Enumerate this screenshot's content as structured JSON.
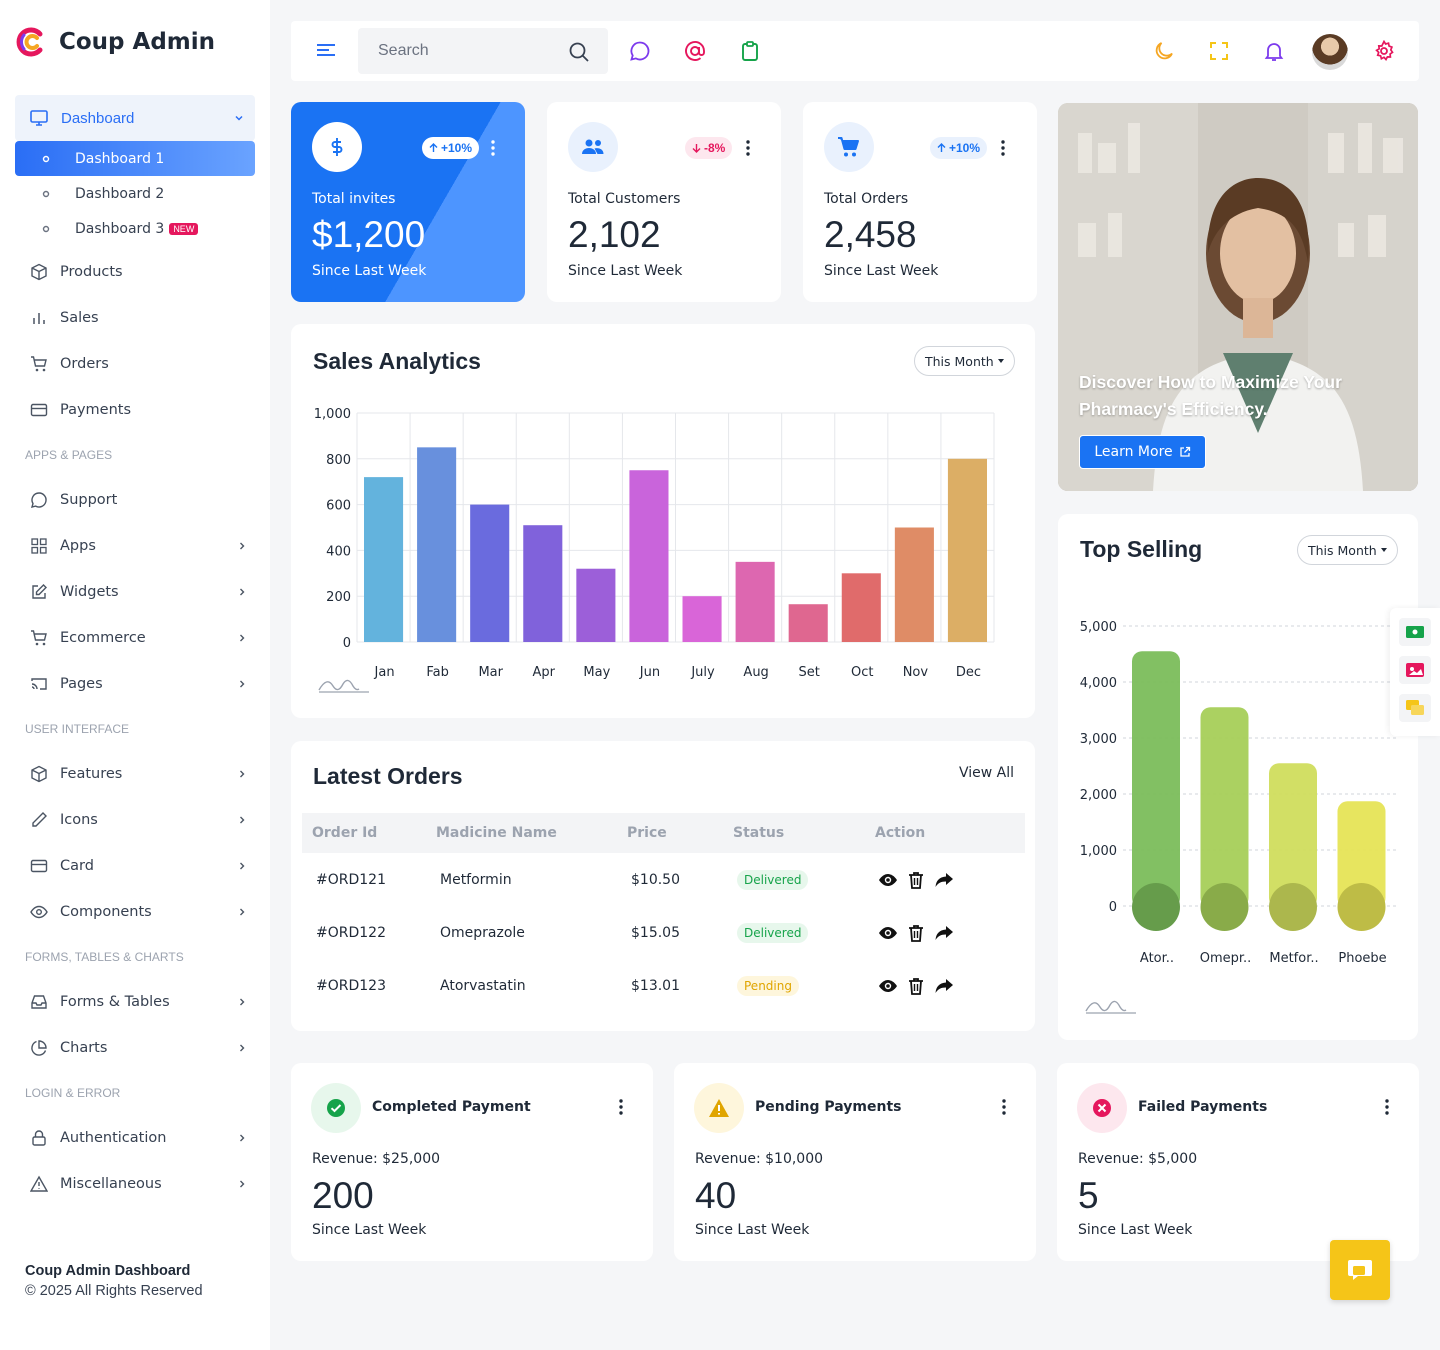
{
  "app": {
    "name": "Coup Admin"
  },
  "colors": {
    "primary": "#1a73f3",
    "success": "#16a34a",
    "warning": "#f5c518",
    "danger": "#e5175d"
  },
  "sidebar": {
    "dashboard": {
      "label": "Dashboard",
      "subs": [
        "Dashboard 1",
        "Dashboard 2",
        "Dashboard 3"
      ],
      "new_badge": "NEW"
    },
    "main_items": [
      "Products",
      "Sales",
      "Orders",
      "Payments"
    ],
    "sections": [
      "APPS & PAGES",
      "USER INTERFACE",
      "FORMS, TABLES & CHARTS",
      "LOGIN & ERROR"
    ],
    "apps_items": [
      "Support",
      "Apps",
      "Widgets",
      "Ecommerce",
      "Pages"
    ],
    "ui_items": [
      "Features",
      "Icons",
      "Card",
      "Components"
    ],
    "ftc_items": [
      "Forms & Tables",
      "Charts"
    ],
    "login_items": [
      "Authentication",
      "Miscellaneous"
    ],
    "footer": {
      "title": "Coup Admin Dashboard",
      "copyright": "© 2025 All Rights Reserved"
    }
  },
  "topbar": {
    "search_placeholder": "Search",
    "icons": [
      "menu-icon",
      "chat-icon",
      "at-icon",
      "clipboard-icon",
      "moon-icon",
      "fullscreen-icon",
      "bell-icon",
      "avatar",
      "settings-icon"
    ]
  },
  "stats": [
    {
      "label": "Total invites",
      "value": "$1,200",
      "change": "+10%",
      "since": "Since Last Week",
      "icon": "dollar-icon"
    },
    {
      "label": "Total Customers",
      "value": "2,102",
      "change": "-8%",
      "since": "Since Last Week",
      "icon": "users-icon"
    },
    {
      "label": "Total Orders",
      "value": "2,458",
      "change": "+10%",
      "since": "Since Last Week",
      "icon": "cart-icon"
    }
  ],
  "promo": {
    "text": "Discover How to Maximize Your Pharmacy's Efficiency.",
    "button": "Learn More"
  },
  "sales": {
    "title": "Sales Analytics",
    "filter": "This Month"
  },
  "top_selling": {
    "title": "Top Selling",
    "filter": "This Month"
  },
  "orders": {
    "title": "Latest Orders",
    "view_all": "View All",
    "columns": [
      "Order Id",
      "Madicine Name",
      "Price",
      "Status",
      "Action"
    ],
    "rows": [
      {
        "id": "#ORD121",
        "name": "Metformin",
        "price": "$10.50",
        "status": "Delivered"
      },
      {
        "id": "#ORD122",
        "name": "Omeprazole",
        "price": "$15.05",
        "status": "Delivered"
      },
      {
        "id": "#ORD123",
        "name": "Atorvastatin",
        "price": "$13.01",
        "status": "Pending"
      }
    ]
  },
  "payments": [
    {
      "title": "Completed Payment",
      "revenue": "Revenue: $25,000",
      "count": "200",
      "since": "Since Last Week"
    },
    {
      "title": "Pending Payments",
      "revenue": "Revenue: $10,000",
      "count": "40",
      "since": "Since Last Week"
    },
    {
      "title": "Failed Payments",
      "revenue": "Revenue: $5,000",
      "count": "5",
      "since": "Since Last Week"
    }
  ],
  "chart_data": [
    {
      "type": "bar",
      "title": "Sales Analytics",
      "categories": [
        "Jan",
        "Fab",
        "Mar",
        "Apr",
        "May",
        "Jun",
        "July",
        "Aug",
        "Set",
        "Oct",
        "Nov",
        "Dec"
      ],
      "values": [
        720,
        850,
        600,
        510,
        320,
        750,
        200,
        350,
        165,
        300,
        500,
        800
      ],
      "ylim": [
        0,
        1000
      ],
      "yticks": [
        "1,000",
        "800",
        "600",
        "400",
        "200",
        "0"
      ],
      "grid": true,
      "colors": [
        "#63b3dd",
        "#6890dd",
        "#6a6bde",
        "#8062db",
        "#9c5fd9",
        "#c964db",
        "#d965d8",
        "#dd67b0",
        "#df6790",
        "#e06b6b",
        "#df8c66",
        "#dcae65"
      ]
    },
    {
      "type": "bar",
      "title": "Top Selling",
      "categories": [
        "Ator..",
        "Omepr..",
        "Metfor..",
        "Phoebe"
      ],
      "values": [
        4550,
        3550,
        2550,
        1870
      ],
      "ylim": [
        0,
        5000
      ],
      "yticks": [
        "5,000",
        "4,000",
        "3,000",
        "2,000",
        "1,000",
        "0"
      ],
      "grid": true,
      "colors": [
        "#7bbd5b",
        "#a6cf59",
        "#d0dd5d",
        "#e6e456"
      ]
    }
  ]
}
